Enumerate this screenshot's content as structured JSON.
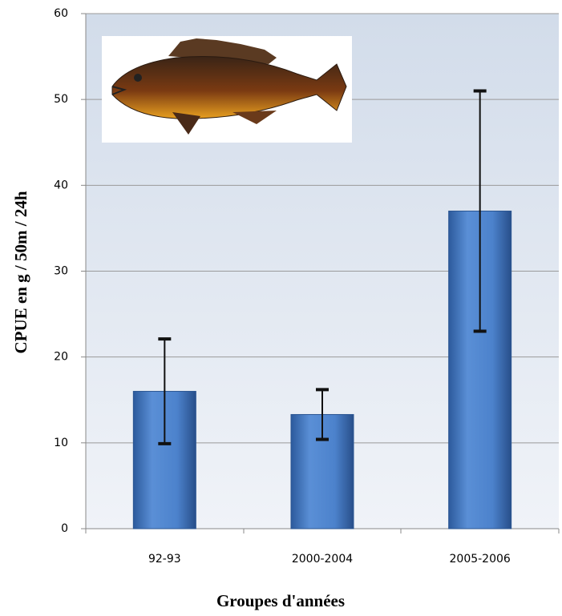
{
  "chart_data": {
    "type": "bar",
    "x_label": "Groupes d'années",
    "y_label": "CPUE en g / 50m / 24h",
    "categories": [
      "92-93",
      "2000-2004",
      "2005-2006"
    ],
    "values": [
      16,
      13.3,
      37
    ],
    "errors": [
      6.1,
      2.9,
      14
    ],
    "color": "#4a7fc9",
    "ylim": [
      0,
      60
    ],
    "yticks": [
      0,
      10,
      20,
      30,
      40,
      50,
      60
    ],
    "grid": true
  }
}
